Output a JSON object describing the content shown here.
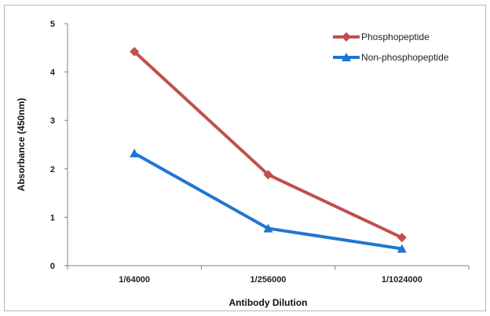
{
  "chart_data": {
    "type": "line",
    "categories": [
      "1/64000",
      "1/256000",
      "1/1024000"
    ],
    "series": [
      {
        "name": "Phosphopeptide",
        "values": [
          4.42,
          1.88,
          0.58
        ],
        "color": "#c0504d",
        "marker": "diamond"
      },
      {
        "name": "Non-phosphopeptide",
        "values": [
          2.32,
          0.77,
          0.35
        ],
        "color": "#1f77d0",
        "marker": "triangle"
      }
    ],
    "title": "",
    "xlabel": "Antibody Dilution",
    "ylabel": "Absorbance (450nm)",
    "ylim": [
      0,
      5
    ],
    "yticks": [
      0,
      1,
      2,
      3,
      4,
      5
    ],
    "grid": false,
    "legend_position": "top-right"
  }
}
